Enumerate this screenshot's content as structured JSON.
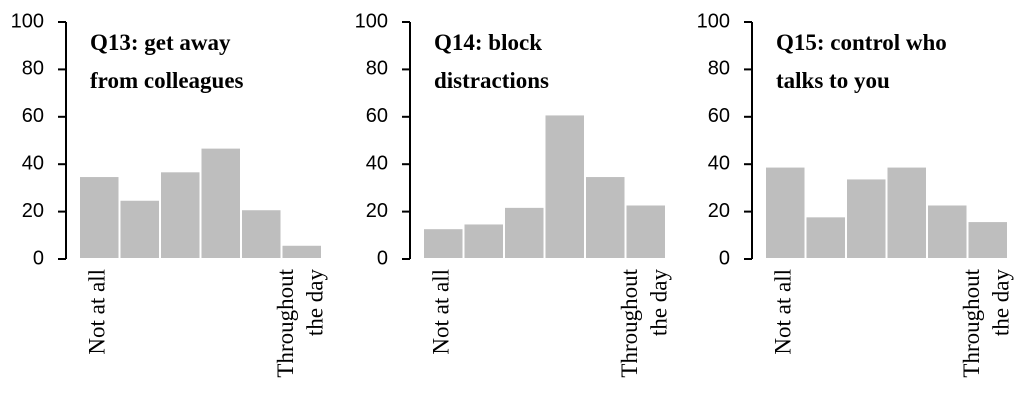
{
  "chart_data": [
    {
      "type": "bar",
      "title": "Q13: get away\nfrom colleagues",
      "categories": [
        "Not at all",
        null,
        null,
        null,
        null,
        "Throughout\nthe day"
      ],
      "values": [
        35,
        25,
        37,
        47,
        21,
        6
      ],
      "color": "#bebebe",
      "ylim": [
        0,
        100
      ],
      "yticks": [
        0,
        20,
        40,
        60,
        80,
        100
      ]
    },
    {
      "type": "bar",
      "title": "Q14: block\ndistractions",
      "categories": [
        "Not at all",
        null,
        null,
        null,
        null,
        "Throughout\nthe day"
      ],
      "values": [
        13,
        15,
        22,
        61,
        35,
        23
      ],
      "color": "#bebebe",
      "ylim": [
        0,
        100
      ],
      "yticks": [
        0,
        20,
        40,
        60,
        80,
        100
      ]
    },
    {
      "type": "bar",
      "title": "Q15: control who\ntalks to you",
      "categories": [
        "Not at all",
        null,
        null,
        null,
        null,
        "Throughout\nthe day"
      ],
      "values": [
        39,
        18,
        34,
        39,
        23,
        16
      ],
      "color": "#bebebe",
      "ylim": [
        0,
        100
      ],
      "yticks": [
        0,
        20,
        40,
        60,
        80,
        100
      ]
    }
  ]
}
